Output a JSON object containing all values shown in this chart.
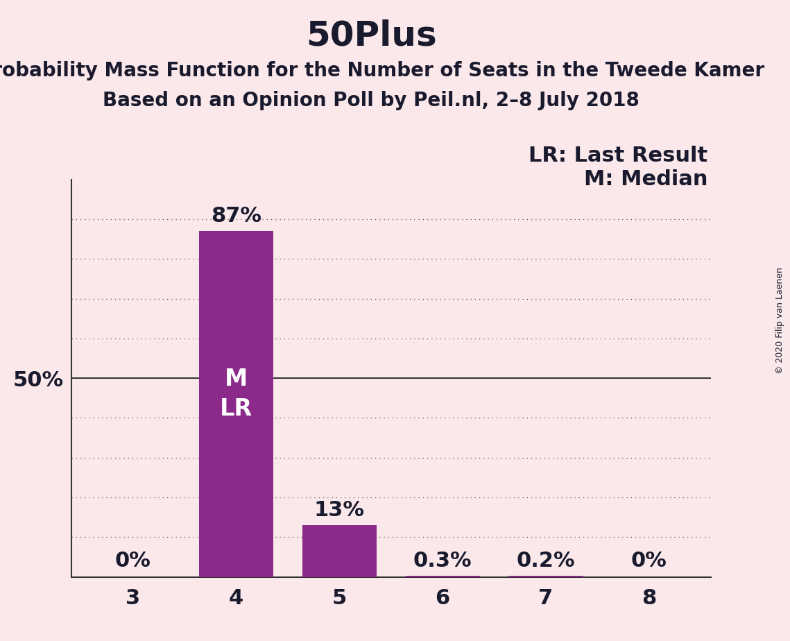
{
  "title": "50Plus",
  "subtitle1": "Probability Mass Function for the Number of Seats in the Tweede Kamer",
  "subtitle2": "Based on an Opinion Poll by Peil.nl, 2–8 July 2018",
  "copyright": "© 2020 Filip van Laenen",
  "categories": [
    3,
    4,
    5,
    6,
    7,
    8
  ],
  "values": [
    0.0,
    87.0,
    13.0,
    0.3,
    0.2,
    0.0
  ],
  "bar_color": "#8B2A8B",
  "background_color": "#FAE8EA",
  "label_color": "#1a1a2e",
  "bar_labels": [
    "0%",
    "87%",
    "13%",
    "0.3%",
    "0.2%",
    "0%"
  ],
  "y50_label": "50%",
  "median_seat": 4,
  "last_result_seat": 4,
  "legend_lr": "LR: Last Result",
  "legend_m": "M: Median",
  "bar_text_m": "M",
  "bar_text_lr": "LR",
  "ylim": [
    0,
    100
  ],
  "title_fontsize": 36,
  "subtitle_fontsize": 20,
  "bar_label_fontsize": 22,
  "bar_intext_fontsize": 24,
  "axis_fontsize": 22,
  "legend_fontsize": 22,
  "copyright_fontsize": 9
}
